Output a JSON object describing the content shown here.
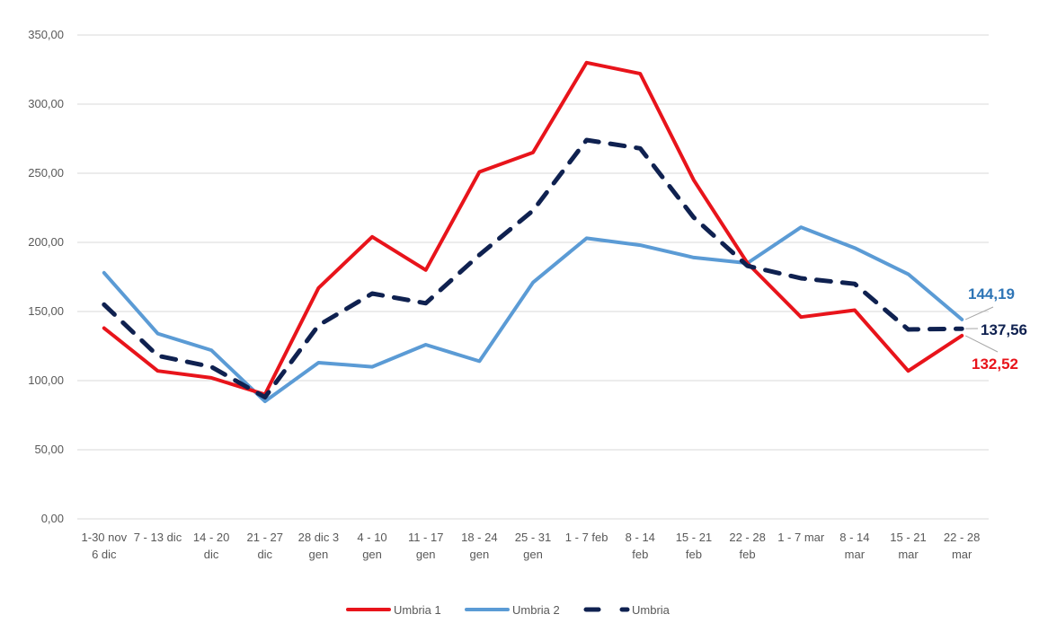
{
  "chart_data": {
    "type": "line",
    "categories": [
      [
        "1-30 nov",
        "6 dic"
      ],
      [
        "7 - 13 dic"
      ],
      [
        "14 - 20",
        "dic"
      ],
      [
        "21 - 27",
        "dic"
      ],
      [
        "28 dic 3",
        "gen"
      ],
      [
        "4 - 10",
        "gen"
      ],
      [
        "11 - 17",
        "gen"
      ],
      [
        "18 - 24",
        "gen"
      ],
      [
        "25 - 31",
        "gen"
      ],
      [
        "1 - 7 feb"
      ],
      [
        "8 - 14",
        "feb"
      ],
      [
        "15 - 21",
        "feb"
      ],
      [
        "22 - 28",
        "feb"
      ],
      [
        "1 - 7 mar"
      ],
      [
        "8 - 14",
        "mar"
      ],
      [
        "15 - 21",
        "mar"
      ],
      [
        "22 - 28",
        "mar"
      ]
    ],
    "y_ticks": [
      "0,00",
      "50,00",
      "100,00",
      "150,00",
      "200,00",
      "250,00",
      "300,00",
      "350,00"
    ],
    "ylim": [
      0,
      350
    ],
    "grid": true,
    "legend_position": "bottom",
    "series": [
      {
        "name": "Umbria 1",
        "color": "#e8141b",
        "style": "solid",
        "values": [
          138,
          107,
          102,
          90,
          167,
          204,
          180,
          251,
          265,
          330,
          322,
          245,
          185,
          146,
          151,
          107,
          132.52
        ],
        "end_label": "132,52"
      },
      {
        "name": "Umbria 2",
        "color": "#5b9bd5",
        "style": "solid",
        "values": [
          178,
          134,
          122,
          85,
          113,
          110,
          126,
          114,
          171,
          203,
          198,
          189,
          185,
          211,
          196,
          177,
          144.19
        ],
        "end_label": "144,19"
      },
      {
        "name": "Umbria",
        "color": "#0f2150",
        "style": "dashed",
        "values": [
          155,
          118,
          110,
          88,
          140,
          163,
          156,
          191,
          223,
          274,
          268,
          218,
          183,
          174,
          170,
          137,
          137.56
        ],
        "end_label": "137,56"
      }
    ]
  }
}
